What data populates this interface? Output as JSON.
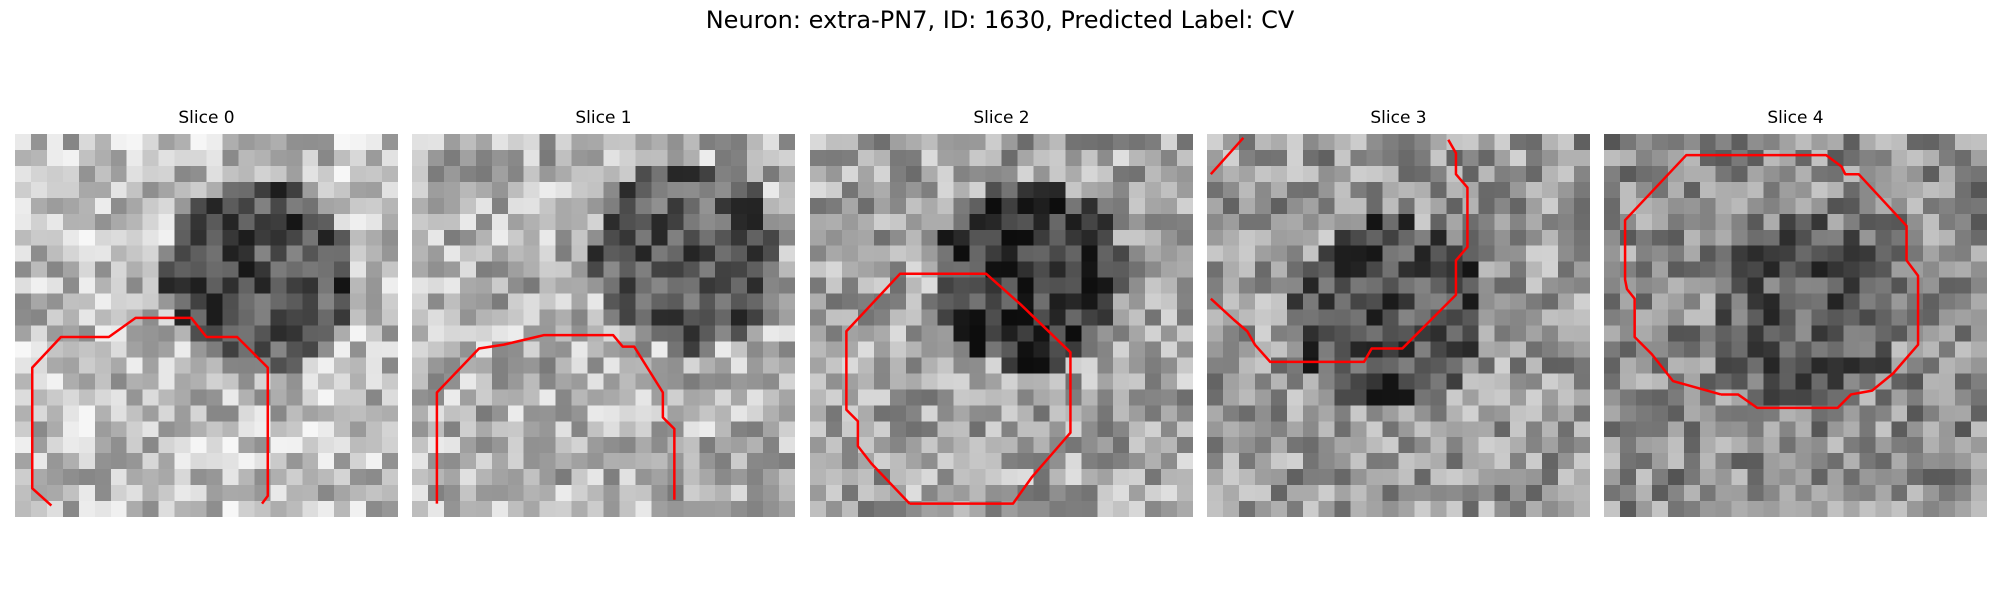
{
  "figure": {
    "title": "Neuron: extra-PN7, ID: 1630, Predicted Label: CV"
  },
  "colors": {
    "contour": "#ff0000",
    "background": "#ffffff"
  },
  "panels": [
    {
      "title": "Slice 0",
      "image": "grayscale-noise-texture",
      "contours": [
        [
          [
            1.9,
            19.4
          ],
          [
            0.9,
            18.5
          ],
          [
            0.9,
            12.2
          ],
          [
            2.4,
            10.6
          ],
          [
            4.9,
            10.6
          ],
          [
            6.3,
            9.6
          ],
          [
            9.2,
            9.6
          ],
          [
            9.6,
            10.1
          ],
          [
            10.0,
            10.6
          ],
          [
            11.6,
            10.6
          ],
          [
            13.2,
            12.2
          ],
          [
            13.2,
            18.9
          ],
          [
            12.9,
            19.3
          ]
        ]
      ]
    },
    {
      "title": "Slice 1",
      "image": "grayscale-noise-texture",
      "contours": [
        [
          [
            1.3,
            19.3
          ],
          [
            1.3,
            13.5
          ],
          [
            3.5,
            11.2
          ],
          [
            4.8,
            11.0
          ],
          [
            6.9,
            10.5
          ],
          [
            10.5,
            10.5
          ],
          [
            11.0,
            11.1
          ],
          [
            11.6,
            11.1
          ],
          [
            13.1,
            13.5
          ],
          [
            13.1,
            14.8
          ],
          [
            13.7,
            15.4
          ],
          [
            13.7,
            19.1
          ]
        ]
      ]
    },
    {
      "title": "Slice 2",
      "image": "grayscale-noise-texture",
      "contours": [
        [
          [
            5.2,
            19.3
          ],
          [
            3.2,
            17.2
          ],
          [
            2.5,
            16.3
          ],
          [
            2.5,
            15.0
          ],
          [
            1.9,
            14.4
          ],
          [
            1.9,
            10.3
          ],
          [
            4.7,
            7.3
          ],
          [
            9.2,
            7.3
          ],
          [
            11.0,
            8.9
          ],
          [
            13.6,
            11.4
          ],
          [
            13.6,
            15.6
          ],
          [
            11.6,
            17.9
          ],
          [
            10.6,
            19.3
          ],
          [
            5.2,
            19.3
          ]
        ]
      ]
    },
    {
      "title": "Slice 3",
      "image": "grayscale-noise-texture",
      "contours": [
        [
          [
            0.2,
            2.1
          ],
          [
            1.9,
            0.2
          ]
        ],
        [
          [
            0.2,
            8.6
          ],
          [
            1.4,
            9.7
          ],
          [
            2.1,
            10.3
          ],
          [
            2.5,
            11.0
          ],
          [
            3.3,
            11.9
          ],
          [
            8.2,
            11.9
          ],
          [
            8.6,
            11.2
          ],
          [
            10.2,
            11.2
          ],
          [
            13.0,
            8.4
          ],
          [
            13.0,
            6.6
          ],
          [
            13.6,
            5.9
          ],
          [
            13.6,
            2.8
          ],
          [
            13.0,
            2.1
          ],
          [
            13.0,
            1.0
          ],
          [
            12.6,
            0.3
          ]
        ]
      ]
    },
    {
      "title": "Slice 4",
      "image": "grayscale-noise-texture",
      "contours": [
        [
          [
            6.1,
            13.6
          ],
          [
            3.6,
            12.9
          ],
          [
            2.5,
            11.5
          ],
          [
            1.6,
            10.6
          ],
          [
            1.6,
            8.6
          ],
          [
            1.2,
            8.1
          ],
          [
            1.1,
            7.6
          ],
          [
            1.1,
            4.5
          ],
          [
            4.3,
            1.1
          ],
          [
            11.6,
            1.1
          ],
          [
            12.4,
            1.7
          ],
          [
            12.6,
            2.1
          ],
          [
            13.3,
            2.1
          ],
          [
            15.8,
            4.8
          ],
          [
            15.8,
            6.6
          ],
          [
            16.4,
            7.4
          ],
          [
            16.4,
            11.0
          ],
          [
            15.1,
            12.5
          ],
          [
            14.0,
            13.4
          ],
          [
            12.9,
            13.6
          ],
          [
            12.2,
            14.3
          ],
          [
            8.0,
            14.3
          ],
          [
            7.0,
            13.6
          ],
          [
            6.1,
            13.6
          ]
        ]
      ]
    }
  ]
}
